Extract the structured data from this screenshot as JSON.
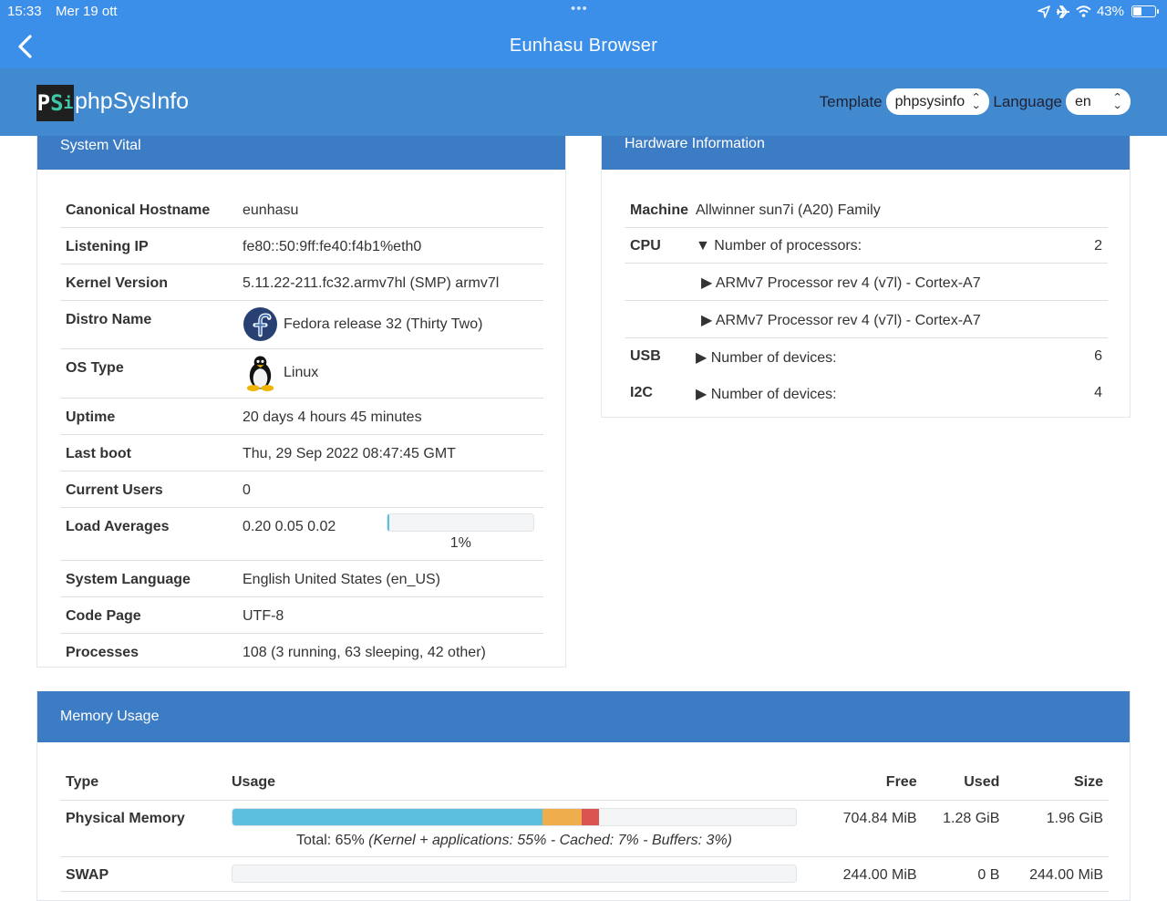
{
  "status_bar": {
    "time": "15:33",
    "date": "Mer 19 ott",
    "dots": "•••",
    "battery": "43%"
  },
  "nav": {
    "title": "Eunhasu Browser"
  },
  "header": {
    "logo_text": "phpSysInfo",
    "template_label": "Template",
    "template_value": "phpsysinfo",
    "language_label": "Language",
    "language_value": "en"
  },
  "vital": {
    "title": "System Vital",
    "rows": {
      "hostname": {
        "label": "Canonical Hostname",
        "value": "eunhasu"
      },
      "ip": {
        "label": "Listening IP",
        "value": "fe80::50:9ff:fe40:f4b1%eth0"
      },
      "kernel": {
        "label": "Kernel Version",
        "value": "5.11.22-211.fc32.armv7hl (SMP) armv7l"
      },
      "distro": {
        "label": "Distro Name",
        "value": "Fedora release 32 (Thirty Two)"
      },
      "os": {
        "label": "OS Type",
        "value": "Linux"
      },
      "uptime": {
        "label": "Uptime",
        "value": "20 days 4 hours 45 minutes"
      },
      "boot": {
        "label": "Last boot",
        "value": "Thu, 29 Sep 2022 08:47:45 GMT"
      },
      "users": {
        "label": "Current Users",
        "value": "0"
      },
      "load": {
        "label": "Load Averages",
        "value": "0.20 0.05 0.02",
        "percent_text": "1%",
        "percent": 1
      },
      "lang": {
        "label": "System Language",
        "value": "English United States (en_US)"
      },
      "codepage": {
        "label": "Code Page",
        "value": "UTF-8"
      },
      "procs": {
        "label": "Processes",
        "value": "108 (3 running, 63 sleeping, 42 other)"
      }
    }
  },
  "hardware": {
    "title": "Hardware Information",
    "machine": {
      "label": "Machine",
      "value": "Allwinner sun7i (A20) Family"
    },
    "cpu": {
      "label": "CPU",
      "summary": "▼ Number of processors:",
      "count": "2",
      "items": [
        "▶ ARMv7 Processor rev 4 (v7l) - Cortex-A7",
        "▶ ARMv7 Processor rev 4 (v7l) - Cortex-A7"
      ]
    },
    "usb": {
      "label": "USB",
      "summary": "▶ Number of devices:",
      "count": "6"
    },
    "i2c": {
      "label": "I2C",
      "summary": "▶ Number of devices:",
      "count": "4"
    }
  },
  "memory": {
    "title": "Memory Usage",
    "headers": {
      "type": "Type",
      "usage": "Usage",
      "free": "Free",
      "used": "Used",
      "size": "Size"
    },
    "physical": {
      "label": "Physical Memory",
      "caption_total": "Total: 65% ",
      "caption_detail": "(Kernel + applications: 55% - Cached: 7% - Buffers: 3%)",
      "segments": [
        {
          "percent": 55,
          "color": "#5bc0de"
        },
        {
          "percent": 7,
          "color": "#f0ad4e"
        },
        {
          "percent": 3,
          "color": "#d9534f"
        }
      ],
      "free": "704.84 MiB",
      "used": "1.28 GiB",
      "size": "1.96 GiB"
    },
    "swap": {
      "label": "SWAP",
      "percent": 0,
      "free": "244.00 MiB",
      "used": "0 B",
      "size": "244.00 MiB"
    }
  }
}
